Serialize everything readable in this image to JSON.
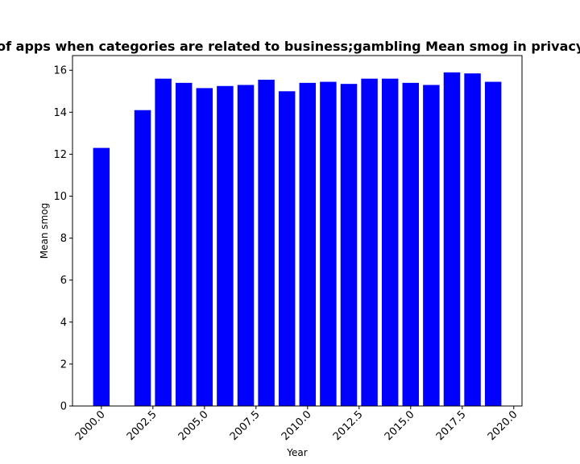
{
  "chart_data": {
    "type": "bar",
    "title": "Mean smog of apps when categories are related to business;gambling Mean smog in privacy policies by year",
    "xlabel": "Year",
    "ylabel": "Mean smog",
    "x": [
      2000,
      2002,
      2003,
      2004,
      2005,
      2006,
      2007,
      2008,
      2009,
      2010,
      2011,
      2012,
      2013,
      2014,
      2015,
      2016,
      2017,
      2018,
      2019
    ],
    "values": [
      12.3,
      14.1,
      15.6,
      15.4,
      15.15,
      15.25,
      15.3,
      15.55,
      15.0,
      15.4,
      15.45,
      15.35,
      15.6,
      15.6,
      15.4,
      15.3,
      15.9,
      15.85,
      15.45
    ],
    "xlim": [
      1998.6,
      2020.4
    ],
    "ylim": [
      0,
      16.7
    ],
    "xticks": [
      2000.0,
      2002.5,
      2005.0,
      2007.5,
      2010.0,
      2012.5,
      2015.0,
      2017.5,
      2020.0
    ],
    "xtick_labels": [
      "2000.0",
      "2002.5",
      "2005.0",
      "2007.5",
      "2010.0",
      "2012.5",
      "2015.0",
      "2017.5",
      "2020.0"
    ],
    "yticks": [
      0,
      2,
      4,
      6,
      8,
      10,
      12,
      14,
      16
    ],
    "ytick_labels": [
      "0",
      "2",
      "4",
      "6",
      "8",
      "10",
      "12",
      "14",
      "16"
    ],
    "bar_color": "#0000ff",
    "grid": false
  }
}
